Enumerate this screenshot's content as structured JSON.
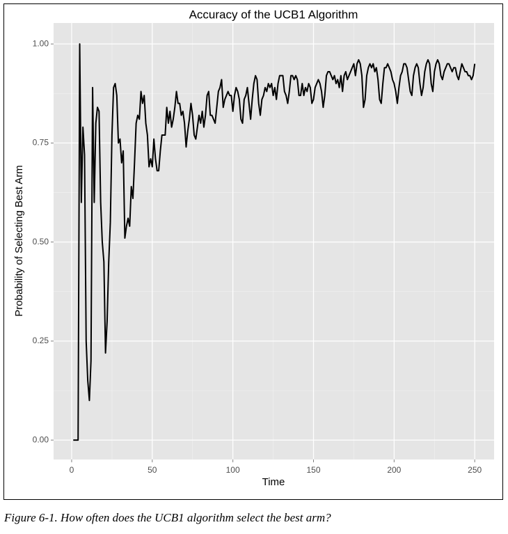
{
  "chart_data": {
    "type": "line",
    "title": "Accuracy of the UCB1 Algorithm",
    "x_label": "Time",
    "y_label": "Probability of Selecting Best Arm",
    "caption": "Figure 6-1. How often does the UCB1 algorithm select the best arm?",
    "color": "#000000",
    "grid": true,
    "xlim": [
      -11.2,
      262
    ],
    "ylim": [
      -0.049,
      1.053
    ],
    "xticks": [
      0,
      50,
      100,
      150,
      200,
      250
    ],
    "yticks": [
      {
        "value": 0,
        "label": "0.00"
      },
      {
        "value": 0.25,
        "label": "0.25"
      },
      {
        "value": 0.5,
        "label": "0.50"
      },
      {
        "value": 0.75,
        "label": "0.75"
      },
      {
        "value": 1,
        "label": "1.00"
      }
    ],
    "x": [
      1,
      2,
      3,
      4,
      5,
      6,
      7,
      8,
      9,
      10,
      11,
      12,
      13,
      14,
      15,
      16,
      17,
      18,
      19,
      20,
      21,
      22,
      23,
      24,
      25,
      26,
      27,
      28,
      29,
      30,
      31,
      32,
      33,
      34,
      35,
      36,
      37,
      38,
      39,
      40,
      41,
      42,
      43,
      44,
      45,
      46,
      47,
      48,
      49,
      50,
      51,
      52,
      53,
      54,
      55,
      56,
      57,
      58,
      59,
      60,
      61,
      62,
      63,
      64,
      65,
      66,
      67,
      68,
      69,
      70,
      71,
      72,
      73,
      74,
      75,
      76,
      77,
      78,
      79,
      80,
      81,
      82,
      83,
      84,
      85,
      86,
      87,
      88,
      89,
      90,
      91,
      92,
      93,
      94,
      95,
      96,
      97,
      98,
      99,
      100,
      101,
      102,
      103,
      104,
      105,
      106,
      107,
      108,
      109,
      110,
      111,
      112,
      113,
      114,
      115,
      116,
      117,
      118,
      119,
      120,
      121,
      122,
      123,
      124,
      125,
      126,
      127,
      128,
      129,
      130,
      131,
      132,
      133,
      134,
      135,
      136,
      137,
      138,
      139,
      140,
      141,
      142,
      143,
      144,
      145,
      146,
      147,
      148,
      149,
      150,
      151,
      152,
      153,
      154,
      155,
      156,
      157,
      158,
      159,
      160,
      161,
      162,
      163,
      164,
      165,
      166,
      167,
      168,
      169,
      170,
      171,
      172,
      173,
      174,
      175,
      176,
      177,
      178,
      179,
      180,
      181,
      182,
      183,
      184,
      185,
      186,
      187,
      188,
      189,
      190,
      191,
      192,
      193,
      194,
      195,
      196,
      197,
      198,
      199,
      200,
      201,
      202,
      203,
      204,
      205,
      206,
      207,
      208,
      209,
      210,
      211,
      212,
      213,
      214,
      215,
      216,
      217,
      218,
      219,
      220,
      221,
      222,
      223,
      224,
      225,
      226,
      227,
      228,
      229,
      230,
      231,
      232,
      233,
      234,
      235,
      236,
      237,
      238,
      239,
      240,
      241,
      242,
      243,
      244,
      245,
      246,
      247,
      248,
      249,
      250
    ],
    "values": [
      0,
      0,
      0,
      0,
      1.0,
      0.6,
      0.79,
      0.72,
      0.25,
      0.15,
      0.1,
      0.2,
      0.89,
      0.6,
      0.8,
      0.84,
      0.83,
      0.6,
      0.5,
      0.45,
      0.22,
      0.3,
      0.45,
      0.55,
      0.77,
      0.89,
      0.9,
      0.87,
      0.75,
      0.76,
      0.7,
      0.73,
      0.51,
      0.54,
      0.56,
      0.54,
      0.64,
      0.61,
      0.7,
      0.8,
      0.82,
      0.81,
      0.88,
      0.85,
      0.87,
      0.8,
      0.77,
      0.69,
      0.71,
      0.69,
      0.76,
      0.71,
      0.68,
      0.68,
      0.73,
      0.77,
      0.77,
      0.77,
      0.84,
      0.8,
      0.83,
      0.79,
      0.81,
      0.84,
      0.88,
      0.85,
      0.85,
      0.82,
      0.83,
      0.8,
      0.74,
      0.78,
      0.81,
      0.85,
      0.82,
      0.77,
      0.76,
      0.79,
      0.82,
      0.8,
      0.83,
      0.79,
      0.82,
      0.87,
      0.88,
      0.82,
      0.82,
      0.81,
      0.8,
      0.84,
      0.88,
      0.89,
      0.91,
      0.84,
      0.86,
      0.87,
      0.88,
      0.87,
      0.87,
      0.83,
      0.87,
      0.89,
      0.88,
      0.86,
      0.81,
      0.8,
      0.86,
      0.87,
      0.89,
      0.85,
      0.81,
      0.86,
      0.9,
      0.92,
      0.91,
      0.85,
      0.82,
      0.86,
      0.87,
      0.89,
      0.88,
      0.9,
      0.89,
      0.9,
      0.87,
      0.89,
      0.86,
      0.9,
      0.92,
      0.92,
      0.92,
      0.88,
      0.87,
      0.85,
      0.88,
      0.92,
      0.92,
      0.91,
      0.92,
      0.91,
      0.87,
      0.87,
      0.9,
      0.87,
      0.89,
      0.88,
      0.9,
      0.89,
      0.85,
      0.86,
      0.89,
      0.9,
      0.91,
      0.9,
      0.88,
      0.84,
      0.87,
      0.92,
      0.93,
      0.93,
      0.92,
      0.91,
      0.92,
      0.9,
      0.91,
      0.89,
      0.92,
      0.88,
      0.92,
      0.93,
      0.91,
      0.92,
      0.93,
      0.94,
      0.95,
      0.92,
      0.95,
      0.96,
      0.95,
      0.92,
      0.84,
      0.86,
      0.92,
      0.94,
      0.95,
      0.94,
      0.95,
      0.93,
      0.94,
      0.91,
      0.86,
      0.85,
      0.9,
      0.94,
      0.94,
      0.95,
      0.94,
      0.93,
      0.91,
      0.9,
      0.88,
      0.85,
      0.89,
      0.92,
      0.93,
      0.95,
      0.95,
      0.94,
      0.91,
      0.88,
      0.87,
      0.92,
      0.94,
      0.95,
      0.94,
      0.9,
      0.87,
      0.89,
      0.93,
      0.95,
      0.96,
      0.95,
      0.9,
      0.88,
      0.93,
      0.95,
      0.96,
      0.95,
      0.92,
      0.91,
      0.93,
      0.94,
      0.95,
      0.95,
      0.94,
      0.93,
      0.94,
      0.94,
      0.92,
      0.91,
      0.93,
      0.95,
      0.94,
      0.93,
      0.93,
      0.92,
      0.92,
      0.91,
      0.92,
      0.95
    ]
  }
}
